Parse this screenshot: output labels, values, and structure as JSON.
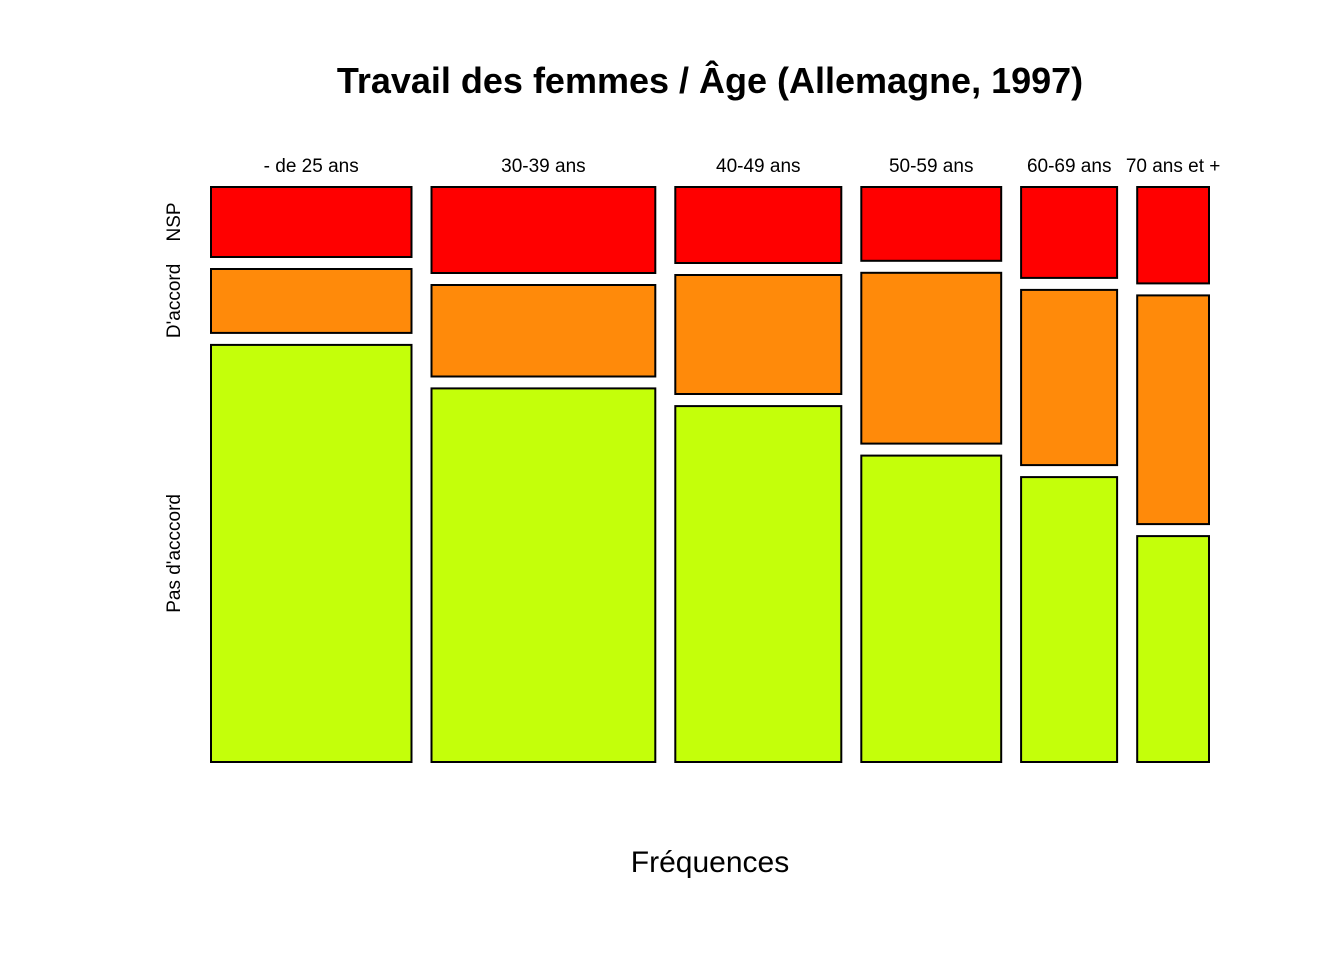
{
  "chart_data": {
    "type": "mosaic",
    "title": "Travail des femmes / Âge (Allemagne, 1997)",
    "xlabel": "Fréquences",
    "categories": [
      "- de 25 ans",
      "30-39 ans",
      "40-49 ans",
      "50-59 ans",
      "60-69 ans",
      "70 ans et +"
    ],
    "column_shares": [
      0.215,
      0.24,
      0.178,
      0.15,
      0.103,
      0.077
    ],
    "responses": [
      {
        "name": "Pas d'acccord",
        "color": "#C4FF0A"
      },
      {
        "name": "D'accord",
        "color": "#FF8A0A"
      },
      {
        "name": "NSP",
        "color": "#FF0000"
      }
    ],
    "proportions": [
      [
        0.757,
        0.116,
        0.127
      ],
      [
        0.678,
        0.166,
        0.156
      ],
      [
        0.646,
        0.216,
        0.138
      ],
      [
        0.556,
        0.31,
        0.134
      ],
      [
        0.517,
        0.318,
        0.165
      ],
      [
        0.41,
        0.415,
        0.175
      ]
    ]
  }
}
